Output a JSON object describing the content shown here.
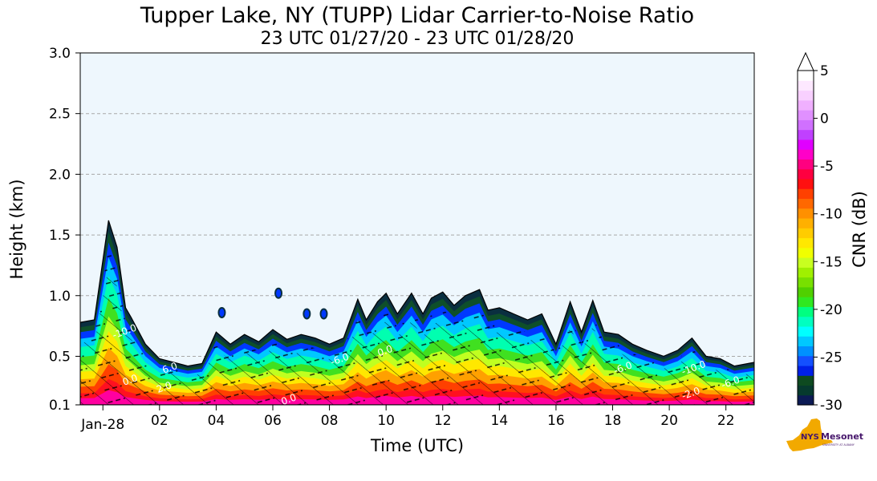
{
  "chart_data": {
    "type": "heatmap",
    "title": "Tupper Lake, NY (TUPP) Lidar Carrier-to-Noise Ratio",
    "subtitle": "23 UTC 01/27/20 - 23 UTC 01/28/20",
    "xlabel": "Time (UTC)",
    "ylabel": "Height (km)",
    "x_ticks": [
      "Jan-28",
      "02",
      "04",
      "06",
      "08",
      "10",
      "12",
      "14",
      "16",
      "18",
      "20",
      "22"
    ],
    "x_tick_hours": [
      0,
      2,
      4,
      6,
      8,
      10,
      12,
      14,
      16,
      18,
      20,
      22
    ],
    "xlim_hours": [
      -0.8,
      23.0
    ],
    "y_ticks": [
      0.1,
      0.5,
      1.0,
      1.5,
      2.0,
      2.5,
      3.0
    ],
    "ylim": [
      0.1,
      3.0
    ],
    "grid": "horizontal dashed",
    "colorbar": {
      "label": "CNR (dB)",
      "ticks": [
        5,
        0,
        -5,
        -10,
        -15,
        -20,
        -25,
        -30
      ],
      "range": [
        -30,
        5
      ],
      "extend": "max",
      "colors": [
        "#0c1a55",
        "#063a2e",
        "#0e4a20",
        "#0020e8",
        "#1450ff",
        "#0090ff",
        "#00c8ff",
        "#00ffff",
        "#00ffc0",
        "#00ff80",
        "#30e820",
        "#50d000",
        "#78e000",
        "#a0f000",
        "#c8ff20",
        "#f0ff00",
        "#ffe800",
        "#ffcc00",
        "#ffb000",
        "#ff9000",
        "#ff6800",
        "#ff4000",
        "#ff1010",
        "#ff0040",
        "#ff0080",
        "#ff00c8",
        "#e000ff",
        "#c040ff",
        "#d070ff",
        "#e090ff",
        "#f0b0ff",
        "#f8d0ff",
        "#fde8ff",
        "#ffffff"
      ]
    },
    "cnr_field": {
      "time_hours": [
        -0.8,
        -0.3,
        0.2,
        0.5,
        0.8,
        1.0,
        1.5,
        2.0,
        2.5,
        3.0,
        3.5,
        4.0,
        4.5,
        5.0,
        5.5,
        6.0,
        6.5,
        7.0,
        7.5,
        8.0,
        8.5,
        9.0,
        9.3,
        9.7,
        10.0,
        10.4,
        10.9,
        11.3,
        11.6,
        12.0,
        12.4,
        12.8,
        13.3,
        13.6,
        14.0,
        14.5,
        15.0,
        15.5,
        16.0,
        16.5,
        16.9,
        17.3,
        17.7,
        18.2,
        18.7,
        19.2,
        19.8,
        20.3,
        20.8,
        21.3,
        21.8,
        22.3,
        23.0
      ],
      "top_height_km": [
        0.78,
        0.8,
        1.62,
        1.4,
        0.9,
        0.82,
        0.6,
        0.48,
        0.45,
        0.42,
        0.44,
        0.7,
        0.6,
        0.68,
        0.62,
        0.72,
        0.64,
        0.68,
        0.65,
        0.6,
        0.65,
        0.97,
        0.8,
        0.95,
        1.02,
        0.85,
        1.02,
        0.85,
        0.98,
        1.03,
        0.92,
        1.0,
        1.05,
        0.88,
        0.9,
        0.85,
        0.8,
        0.85,
        0.6,
        0.95,
        0.7,
        0.96,
        0.7,
        0.68,
        0.6,
        0.55,
        0.5,
        0.55,
        0.65,
        0.5,
        0.48,
        0.42,
        0.45
      ],
      "isolated_echoes": [
        {
          "time_hours": 6.2,
          "height_km": 1.02
        },
        {
          "time_hours": 4.2,
          "height_km": 0.86
        },
        {
          "time_hours": 7.2,
          "height_km": 0.85
        },
        {
          "time_hours": 7.8,
          "height_km": 0.85
        }
      ]
    },
    "contour_labels": [
      {
        "text": "0.0",
        "time_hours": 1.0,
        "height_km": 0.28
      },
      {
        "text": "2.0",
        "time_hours": 2.2,
        "height_km": 0.22
      },
      {
        "text": "6.0",
        "time_hours": 2.4,
        "height_km": 0.38
      },
      {
        "text": "-10.0",
        "time_hours": 0.8,
        "height_km": 0.68
      },
      {
        "text": "0.0",
        "time_hours": 6.6,
        "height_km": 0.12
      },
      {
        "text": "-6.0",
        "time_hours": 8.4,
        "height_km": 0.45
      },
      {
        "text": "0.0",
        "time_hours": 10.0,
        "height_km": 0.52
      },
      {
        "text": "-6.0",
        "time_hours": 18.4,
        "height_km": 0.38
      },
      {
        "text": "-10.0",
        "time_hours": 20.9,
        "height_km": 0.38
      },
      {
        "text": "-2.0",
        "time_hours": 20.8,
        "height_km": 0.17
      },
      {
        "text": "-6.0",
        "time_hours": 22.2,
        "height_km": 0.26
      }
    ]
  },
  "logo": {
    "name": "NYS Mesonet",
    "text_main": "NYS",
    "text_mesonet": "Mesonet",
    "text_small": "UNIVERSITY AT ALBANY",
    "color_state": "#f2a900",
    "color_text": "#46166b"
  }
}
